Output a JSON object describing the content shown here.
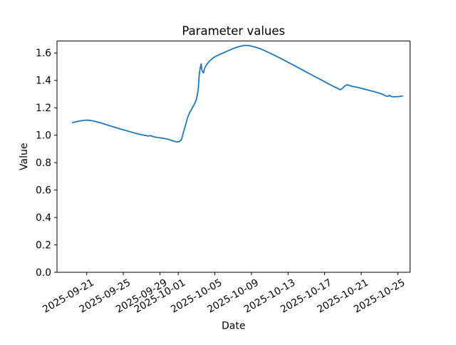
{
  "chart_data": {
    "type": "line",
    "title": "Parameter values",
    "xlabel": "Date",
    "ylabel": "Value",
    "line_color": "#1f77b4",
    "axis_color": "#000000",
    "background_color": "#ffffff",
    "grid": false,
    "legend": "none",
    "x_tick_rotation_deg": 30,
    "x_ticks": [
      "2025-09-21",
      "2025-09-25",
      "2025-09-29",
      "2025-10-01",
      "2025-10-05",
      "2025-10-09",
      "2025-10-13",
      "2025-10-17",
      "2025-10-21",
      "2025-10-25"
    ],
    "y_ticks": [
      "0.0",
      "0.2",
      "0.4",
      "0.6",
      "0.8",
      "1.0",
      "1.2",
      "1.4",
      "1.6"
    ],
    "xlim": [
      "2025-09-17T18:00",
      "2025-10-26T08:00"
    ],
    "ylim": [
      0.0,
      1.6875
    ],
    "series": [
      {
        "points": [
          [
            "2025-09-19T10:30",
            1.092
          ],
          [
            "2025-09-19T18:00",
            1.097
          ],
          [
            "2025-09-20T01:00",
            1.101
          ],
          [
            "2025-09-20T08:30",
            1.105
          ],
          [
            "2025-09-20T15:30",
            1.108
          ],
          [
            "2025-09-20T23:00",
            1.11
          ],
          [
            "2025-09-21T06:00",
            1.109
          ],
          [
            "2025-09-21T13:00",
            1.106
          ],
          [
            "2025-09-21T20:30",
            1.102
          ],
          [
            "2025-09-22T03:30",
            1.097
          ],
          [
            "2025-09-22T11:00",
            1.091
          ],
          [
            "2025-09-22T18:00",
            1.085
          ],
          [
            "2025-09-23T01:00",
            1.079
          ],
          [
            "2025-09-23T11:00",
            1.071
          ],
          [
            "2025-09-23T20:30",
            1.062
          ],
          [
            "2025-09-24T06:00",
            1.054
          ],
          [
            "2025-09-24T15:30",
            1.046
          ],
          [
            "2025-09-25T01:00",
            1.039
          ],
          [
            "2025-09-25T11:00",
            1.031
          ],
          [
            "2025-09-25T20:30",
            1.023
          ],
          [
            "2025-09-26T06:00",
            1.016
          ],
          [
            "2025-09-26T15:30",
            1.009
          ],
          [
            "2025-09-27T01:00",
            1.003
          ],
          [
            "2025-09-27T11:00",
            0.998
          ],
          [
            "2025-09-27T17:00",
            0.994
          ],
          [
            "2025-09-27T23:00",
            0.997
          ],
          [
            "2025-09-28T06:00",
            0.99
          ],
          [
            "2025-09-28T15:30",
            0.985
          ],
          [
            "2025-09-29T01:00",
            0.981
          ],
          [
            "2025-09-29T11:00",
            0.976
          ],
          [
            "2025-09-29T20:30",
            0.971
          ],
          [
            "2025-09-30T05:00",
            0.964
          ],
          [
            "2025-09-30T12:00",
            0.957
          ],
          [
            "2025-09-30T20:00",
            0.951
          ],
          [
            "2025-10-01T02:30",
            0.953
          ],
          [
            "2025-10-01T08:30",
            0.968
          ],
          [
            "2025-10-01T14:30",
            1.03
          ],
          [
            "2025-10-01T19:00",
            1.07
          ],
          [
            "2025-10-02T00:00",
            1.125
          ],
          [
            "2025-10-02T06:00",
            1.165
          ],
          [
            "2025-10-02T12:00",
            1.195
          ],
          [
            "2025-10-02T18:00",
            1.225
          ],
          [
            "2025-10-02T23:00",
            1.255
          ],
          [
            "2025-10-03T02:30",
            1.3
          ],
          [
            "2025-10-03T05:00",
            1.35
          ],
          [
            "2025-10-03T07:00",
            1.44
          ],
          [
            "2025-10-03T09:30",
            1.49
          ],
          [
            "2025-10-03T12:00",
            1.52
          ],
          [
            "2025-10-03T14:30",
            1.47
          ],
          [
            "2025-10-03T18:00",
            1.455
          ],
          [
            "2025-10-03T21:30",
            1.49
          ],
          [
            "2025-10-04T02:30",
            1.515
          ],
          [
            "2025-10-04T09:30",
            1.54
          ],
          [
            "2025-10-04T17:00",
            1.558
          ],
          [
            "2025-10-05T00:00",
            1.572
          ],
          [
            "2025-10-05T12:00",
            1.588
          ],
          [
            "2025-10-06T00:00",
            1.603
          ],
          [
            "2025-10-06T12:00",
            1.618
          ],
          [
            "2025-10-07T00:00",
            1.632
          ],
          [
            "2025-10-07T12:00",
            1.644
          ],
          [
            "2025-10-08T00:00",
            1.652
          ],
          [
            "2025-10-08T07:00",
            1.656
          ],
          [
            "2025-10-08T17:00",
            1.654
          ],
          [
            "2025-10-09T00:00",
            1.65
          ],
          [
            "2025-10-09T12:00",
            1.641
          ],
          [
            "2025-10-10T00:00",
            1.63
          ],
          [
            "2025-10-10T12:00",
            1.615
          ],
          [
            "2025-10-11T00:00",
            1.6
          ],
          [
            "2025-10-11T12:00",
            1.584
          ],
          [
            "2025-10-12T00:00",
            1.567
          ],
          [
            "2025-10-12T12:00",
            1.55
          ],
          [
            "2025-10-13T00:00",
            1.532
          ],
          [
            "2025-10-13T12:00",
            1.515
          ],
          [
            "2025-10-14T00:00",
            1.497
          ],
          [
            "2025-10-14T12:00",
            1.479
          ],
          [
            "2025-10-15T00:00",
            1.461
          ],
          [
            "2025-10-15T12:00",
            1.443
          ],
          [
            "2025-10-16T00:00",
            1.425
          ],
          [
            "2025-10-16T12:00",
            1.408
          ],
          [
            "2025-10-17T00:00",
            1.39
          ],
          [
            "2025-10-17T12:00",
            1.372
          ],
          [
            "2025-10-18T00:00",
            1.355
          ],
          [
            "2025-10-18T08:30",
            1.344
          ],
          [
            "2025-10-18T17:00",
            1.332
          ],
          [
            "2025-10-18T23:00",
            1.342
          ],
          [
            "2025-10-19T05:00",
            1.36
          ],
          [
            "2025-10-19T11:00",
            1.368
          ],
          [
            "2025-10-19T18:00",
            1.362
          ],
          [
            "2025-10-20T00:00",
            1.357
          ],
          [
            "2025-10-20T12:00",
            1.35
          ],
          [
            "2025-10-21T00:00",
            1.342
          ],
          [
            "2025-10-21T12:00",
            1.334
          ],
          [
            "2025-10-22T00:00",
            1.325
          ],
          [
            "2025-10-22T12:00",
            1.316
          ],
          [
            "2025-10-23T00:00",
            1.307
          ],
          [
            "2025-10-23T08:30",
            1.298
          ],
          [
            "2025-10-23T15:30",
            1.287
          ],
          [
            "2025-10-23T23:00",
            1.284
          ],
          [
            "2025-10-24T02:30",
            1.292
          ],
          [
            "2025-10-24T06:00",
            1.283
          ],
          [
            "2025-10-24T12:00",
            1.28
          ],
          [
            "2025-10-24T19:00",
            1.281
          ],
          [
            "2025-10-25T02:30",
            1.282
          ],
          [
            "2025-10-25T12:00",
            1.286
          ]
        ]
      }
    ]
  }
}
